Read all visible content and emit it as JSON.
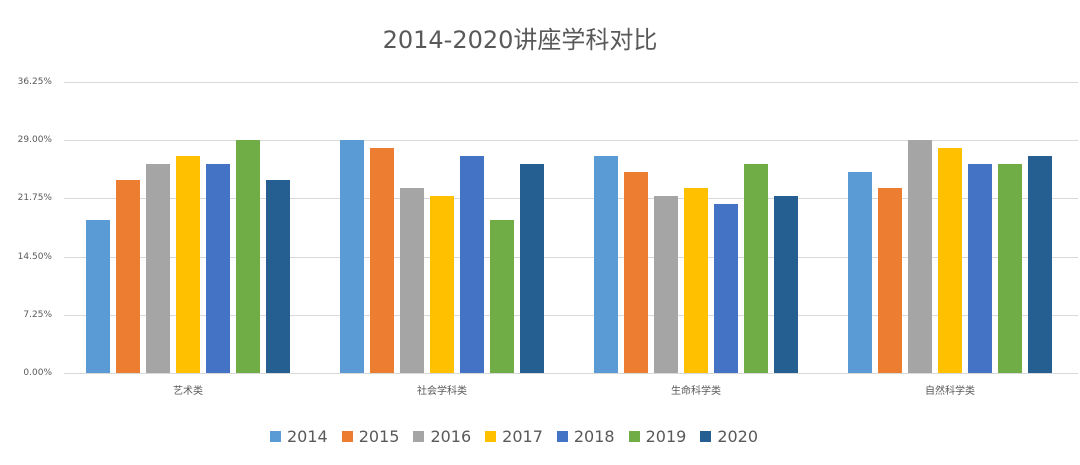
{
  "chart_data": {
    "type": "bar",
    "title": "2014-2020讲座学科对比",
    "xlabel": "",
    "ylabel": "",
    "ylim": [
      0,
      36.25
    ],
    "yticks": [
      "0.00%",
      "7.25%",
      "14.50%",
      "21.75%",
      "29.00%",
      "36.25%"
    ],
    "grid": true,
    "legend_position": "bottom",
    "categories": [
      "艺术类",
      "社会学科类",
      "生命科学类",
      "自然科学类"
    ],
    "series": [
      {
        "name": "2014",
        "color": "#5b9bd5",
        "values": [
          19,
          29,
          27,
          25
        ]
      },
      {
        "name": "2015",
        "color": "#ed7d31",
        "values": [
          24,
          28,
          25,
          23
        ]
      },
      {
        "name": "2016",
        "color": "#a5a5a5",
        "values": [
          26,
          23,
          22,
          29
        ]
      },
      {
        "name": "2017",
        "color": "#ffc000",
        "values": [
          27,
          22,
          23,
          28
        ]
      },
      {
        "name": "2018",
        "color": "#4472c4",
        "values": [
          26,
          27,
          21,
          26
        ]
      },
      {
        "name": "2019",
        "color": "#70ad47",
        "values": [
          29,
          19,
          26,
          26
        ]
      },
      {
        "name": "2020",
        "color": "#255e91",
        "values": [
          24,
          26,
          22,
          27
        ]
      }
    ]
  }
}
